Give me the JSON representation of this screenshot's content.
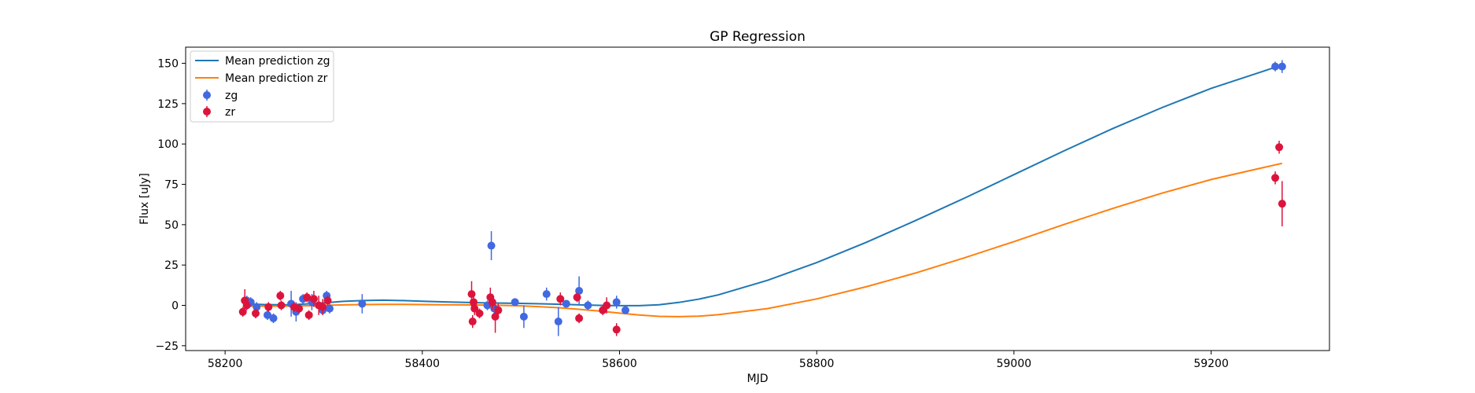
{
  "chart_data": {
    "type": "scatter",
    "title": "GP Regression",
    "xlabel": "MJD",
    "ylabel": "Flux [uJy]",
    "xlim": [
      58160,
      59320
    ],
    "ylim": [
      -28,
      160
    ],
    "xticks": [
      58200,
      58400,
      58600,
      58800,
      59000,
      59200
    ],
    "yticks": [
      -25,
      0,
      25,
      50,
      75,
      100,
      125,
      150
    ],
    "grid": false,
    "legend_position": "top-left",
    "lines": [
      {
        "name": "Mean prediction zg",
        "color": "#1f77b4",
        "x": [
          58218,
          58240,
          58260,
          58280,
          58300,
          58320,
          58340,
          58360,
          58380,
          58400,
          58420,
          58440,
          58460,
          58480,
          58500,
          58520,
          58540,
          58560,
          58580,
          58600,
          58620,
          58640,
          58660,
          58680,
          58700,
          58750,
          58800,
          58850,
          58900,
          58950,
          59000,
          59050,
          59100,
          59150,
          59200,
          59250,
          59272
        ],
        "y": [
          1.0,
          0.5,
          0.3,
          0.8,
          1.5,
          2.5,
          3.0,
          3.2,
          3.0,
          2.6,
          2.2,
          1.9,
          1.6,
          1.4,
          1.2,
          1.0,
          0.7,
          0.3,
          0.0,
          -0.2,
          -0.2,
          0.4,
          1.8,
          3.8,
          6.5,
          15.5,
          26.5,
          39.0,
          52.5,
          66.5,
          81.0,
          95.5,
          109.5,
          122.5,
          134.5,
          144.5,
          149.0
        ]
      },
      {
        "name": "Mean prediction zr",
        "color": "#ff7f0e",
        "x": [
          58218,
          58240,
          58260,
          58280,
          58300,
          58320,
          58340,
          58360,
          58380,
          58400,
          58420,
          58440,
          58460,
          58480,
          58500,
          58520,
          58540,
          58560,
          58580,
          58600,
          58620,
          58640,
          58660,
          58680,
          58700,
          58750,
          58800,
          58850,
          58900,
          58950,
          59000,
          59050,
          59100,
          59150,
          59200,
          59250,
          59272
        ],
        "y": [
          -0.5,
          -0.5,
          -0.5,
          -0.3,
          0.0,
          0.3,
          0.5,
          0.6,
          0.6,
          0.5,
          0.4,
          0.3,
          0.2,
          0.0,
          -0.3,
          -0.8,
          -1.5,
          -2.5,
          -3.5,
          -4.8,
          -6.0,
          -6.8,
          -7.0,
          -6.7,
          -5.8,
          -2.0,
          4.0,
          11.5,
          20.0,
          29.5,
          39.5,
          50.0,
          60.0,
          69.5,
          78.0,
          85.0,
          88.0
        ]
      }
    ],
    "series": [
      {
        "name": "zg",
        "color": "#4169e1",
        "points": [
          {
            "x": 58222,
            "y": 3,
            "err": 3
          },
          {
            "x": 58226,
            "y": 2,
            "err": 3
          },
          {
            "x": 58232,
            "y": -1,
            "err": 3
          },
          {
            "x": 58243,
            "y": -6,
            "err": 3
          },
          {
            "x": 58249,
            "y": -8,
            "err": 3
          },
          {
            "x": 58267,
            "y": 1,
            "err": 8
          },
          {
            "x": 58272,
            "y": -4,
            "err": 6
          },
          {
            "x": 58279,
            "y": 4,
            "err": 3
          },
          {
            "x": 58288,
            "y": 2,
            "err": 5
          },
          {
            "x": 58299,
            "y": -3,
            "err": 3
          },
          {
            "x": 58303,
            "y": 6,
            "err": 3
          },
          {
            "x": 58306,
            "y": -2,
            "err": 3
          },
          {
            "x": 58339,
            "y": 1,
            "err": 6
          },
          {
            "x": 58466,
            "y": 0,
            "err": 3
          },
          {
            "x": 58470,
            "y": 37,
            "err": 9
          },
          {
            "x": 58473,
            "y": -2,
            "err": 5
          },
          {
            "x": 58494,
            "y": 2,
            "err": 2
          },
          {
            "x": 58503,
            "y": -7,
            "err": 7
          },
          {
            "x": 58526,
            "y": 7,
            "err": 4
          },
          {
            "x": 58538,
            "y": -10,
            "err": 9
          },
          {
            "x": 58546,
            "y": 1,
            "err": 2
          },
          {
            "x": 58559,
            "y": 9,
            "err": 9
          },
          {
            "x": 58568,
            "y": 0,
            "err": 3
          },
          {
            "x": 58597,
            "y": 2,
            "err": 4
          },
          {
            "x": 58606,
            "y": -3,
            "err": 2
          },
          {
            "x": 59265,
            "y": 148,
            "err": 3
          },
          {
            "x": 59272,
            "y": 148,
            "err": 4
          }
        ]
      },
      {
        "name": "zr",
        "color": "#dc143c",
        "points": [
          {
            "x": 58218,
            "y": -4,
            "err": 3
          },
          {
            "x": 58220,
            "y": 3,
            "err": 7
          },
          {
            "x": 58222,
            "y": 0,
            "err": 3
          },
          {
            "x": 58231,
            "y": -5,
            "err": 3
          },
          {
            "x": 58244,
            "y": -1,
            "err": 3
          },
          {
            "x": 58256,
            "y": 6,
            "err": 3
          },
          {
            "x": 58257,
            "y": 0,
            "err": 3
          },
          {
            "x": 58270,
            "y": -1,
            "err": 3
          },
          {
            "x": 58275,
            "y": -2,
            "err": 3
          },
          {
            "x": 58283,
            "y": 5,
            "err": 3
          },
          {
            "x": 58285,
            "y": -6,
            "err": 3
          },
          {
            "x": 58290,
            "y": 4,
            "err": 5
          },
          {
            "x": 58295,
            "y": 0,
            "err": 6
          },
          {
            "x": 58299,
            "y": -1,
            "err": 5
          },
          {
            "x": 58304,
            "y": 3,
            "err": 3
          },
          {
            "x": 58450,
            "y": 7,
            "err": 8
          },
          {
            "x": 58451,
            "y": -10,
            "err": 4
          },
          {
            "x": 58452,
            "y": 2,
            "err": 5
          },
          {
            "x": 58453,
            "y": -2,
            "err": 4
          },
          {
            "x": 58458,
            "y": -5,
            "err": 3
          },
          {
            "x": 58469,
            "y": 5,
            "err": 6
          },
          {
            "x": 58471,
            "y": 2,
            "err": 5
          },
          {
            "x": 58474,
            "y": -7,
            "err": 10
          },
          {
            "x": 58477,
            "y": -3,
            "err": 4
          },
          {
            "x": 58540,
            "y": 4,
            "err": 4
          },
          {
            "x": 58557,
            "y": 5,
            "err": 3
          },
          {
            "x": 58559,
            "y": -8,
            "err": 3
          },
          {
            "x": 58583,
            "y": -3,
            "err": 3
          },
          {
            "x": 58587,
            "y": 0,
            "err": 5
          },
          {
            "x": 58597,
            "y": -15,
            "err": 4
          },
          {
            "x": 59265,
            "y": 79,
            "err": 4
          },
          {
            "x": 59269,
            "y": 98,
            "err": 4
          },
          {
            "x": 59272,
            "y": 63,
            "err": 14
          }
        ]
      }
    ]
  }
}
